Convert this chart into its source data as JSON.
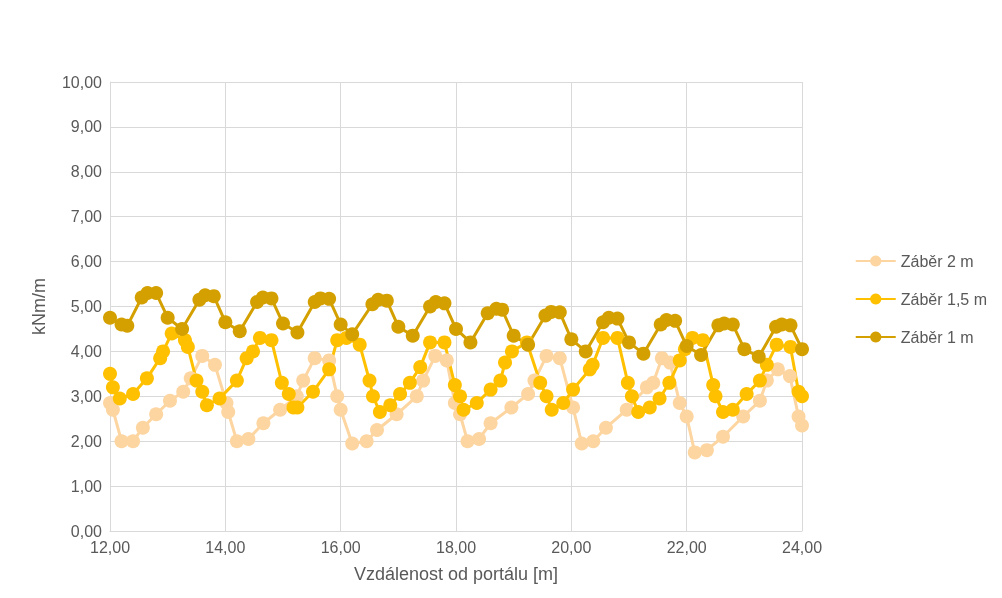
{
  "chart_data": {
    "type": "line",
    "xlabel": "Vzdálenost od portálu [m]",
    "ylabel": "kNm/m",
    "xlim": [
      12,
      24
    ],
    "ylim": [
      0,
      10
    ],
    "xticks": [
      {
        "value": 12,
        "label": "12,00"
      },
      {
        "value": 14,
        "label": "14,00"
      },
      {
        "value": 16,
        "label": "16,00"
      },
      {
        "value": 18,
        "label": "18,00"
      },
      {
        "value": 20,
        "label": "20,00"
      },
      {
        "value": 22,
        "label": "22,00"
      },
      {
        "value": 24,
        "label": "24,00"
      }
    ],
    "yticks": [
      {
        "value": 0,
        "label": "0,00"
      },
      {
        "value": 1,
        "label": "1,00"
      },
      {
        "value": 2,
        "label": "2,00"
      },
      {
        "value": 3,
        "label": "3,00"
      },
      {
        "value": 4,
        "label": "4,00"
      },
      {
        "value": 5,
        "label": "5,00"
      },
      {
        "value": 6,
        "label": "6,00"
      },
      {
        "value": 7,
        "label": "7,00"
      },
      {
        "value": 8,
        "label": "8,00"
      },
      {
        "value": 9,
        "label": "9,00"
      },
      {
        "value": 10,
        "label": "10,00"
      }
    ],
    "grid": true,
    "legend": "right",
    "marker": "circle",
    "series": [
      {
        "name": "Záběr 2 m",
        "color": "#fdd5a0",
        "x": [
          12.0,
          12.05,
          12.2,
          12.4,
          12.57,
          12.8,
          13.04,
          13.27,
          13.4,
          13.6,
          13.82,
          14.02,
          14.05,
          14.2,
          14.4,
          14.66,
          14.95,
          15.24,
          15.35,
          15.55,
          15.8,
          15.94,
          16.0,
          16.2,
          16.45,
          16.63,
          16.97,
          17.32,
          17.43,
          17.64,
          17.84,
          17.98,
          18.07,
          18.2,
          18.4,
          18.6,
          18.96,
          19.25,
          19.36,
          19.57,
          19.8,
          20.03,
          20.18,
          20.38,
          20.6,
          20.96,
          21.31,
          21.42,
          21.57,
          21.71,
          21.88,
          22.0,
          22.14,
          22.35,
          22.63,
          22.98,
          23.27,
          23.39,
          23.58,
          23.79,
          23.94,
          24.0
        ],
        "values": [
          2.85,
          2.7,
          2.0,
          2.0,
          2.3,
          2.6,
          2.9,
          3.1,
          3.4,
          3.9,
          3.7,
          2.85,
          2.65,
          2.0,
          2.05,
          2.4,
          2.7,
          3.0,
          3.35,
          3.85,
          3.8,
          3.0,
          2.7,
          1.95,
          2.0,
          2.25,
          2.6,
          3.0,
          3.35,
          3.9,
          3.8,
          2.85,
          2.6,
          2.0,
          2.05,
          2.4,
          2.75,
          3.05,
          3.35,
          3.9,
          3.85,
          2.75,
          1.95,
          2.0,
          2.3,
          2.7,
          3.2,
          3.3,
          3.85,
          3.75,
          2.85,
          2.55,
          1.75,
          1.8,
          2.1,
          2.55,
          2.9,
          3.35,
          3.6,
          3.45,
          2.55,
          2.35
        ]
      },
      {
        "name": "Záběr 1,5 m",
        "color": "#ffc000",
        "x": [
          12.0,
          12.05,
          12.17,
          12.4,
          12.64,
          12.87,
          12.92,
          13.07,
          13.3,
          13.35,
          13.5,
          13.6,
          13.68,
          13.9,
          14.2,
          14.37,
          14.48,
          14.6,
          14.8,
          14.98,
          15.1,
          15.18,
          15.25,
          15.52,
          15.8,
          15.94,
          16.1,
          16.33,
          16.5,
          16.56,
          16.68,
          16.86,
          17.03,
          17.2,
          17.38,
          17.55,
          17.8,
          17.98,
          18.07,
          18.13,
          18.36,
          18.6,
          18.77,
          18.85,
          18.97,
          19.23,
          19.46,
          19.57,
          19.66,
          19.86,
          20.03,
          20.32,
          20.37,
          20.55,
          20.8,
          20.98,
          21.05,
          21.16,
          21.36,
          21.53,
          21.7,
          21.88,
          21.97,
          22.1,
          22.28,
          22.46,
          22.5,
          22.63,
          22.8,
          23.04,
          23.27,
          23.39,
          23.56,
          23.8,
          23.94,
          24.0
        ],
        "values": [
          3.5,
          3.2,
          2.95,
          3.05,
          3.4,
          3.85,
          4.0,
          4.4,
          4.25,
          4.1,
          3.35,
          3.1,
          2.8,
          2.95,
          3.35,
          3.85,
          4.0,
          4.3,
          4.25,
          3.3,
          3.05,
          2.75,
          2.75,
          3.1,
          3.6,
          4.25,
          4.3,
          4.15,
          3.35,
          3.0,
          2.65,
          2.8,
          3.05,
          3.3,
          3.65,
          4.2,
          4.2,
          3.25,
          3.0,
          2.7,
          2.85,
          3.15,
          3.35,
          3.75,
          4.0,
          4.2,
          3.3,
          3.0,
          2.7,
          2.85,
          3.15,
          3.6,
          3.7,
          4.3,
          4.3,
          3.3,
          3.0,
          2.65,
          2.75,
          2.95,
          3.3,
          3.8,
          4.05,
          4.3,
          4.25,
          3.25,
          3.0,
          2.65,
          2.7,
          3.05,
          3.35,
          3.7,
          4.15,
          4.1,
          3.1,
          3.0
        ]
      },
      {
        "name": "Záběr 1 m",
        "color": "#d4a000",
        "x": [
          12.0,
          12.2,
          12.3,
          12.55,
          12.65,
          12.8,
          13.0,
          13.25,
          13.55,
          13.65,
          13.8,
          14.0,
          14.25,
          14.55,
          14.65,
          14.8,
          15.0,
          15.25,
          15.55,
          15.65,
          15.8,
          16.0,
          16.2,
          16.55,
          16.65,
          16.8,
          17.0,
          17.25,
          17.55,
          17.65,
          17.8,
          18.0,
          18.25,
          18.55,
          18.7,
          18.8,
          19.0,
          19.25,
          19.55,
          19.65,
          19.8,
          20.0,
          20.25,
          20.55,
          20.65,
          20.8,
          21.0,
          21.25,
          21.55,
          21.65,
          21.8,
          22.0,
          22.25,
          22.55,
          22.65,
          22.8,
          23.0,
          23.25,
          23.55,
          23.65,
          23.8,
          24.0
        ],
        "values": [
          4.75,
          4.6,
          4.57,
          5.2,
          5.3,
          5.3,
          4.75,
          4.5,
          5.15,
          5.25,
          5.23,
          4.65,
          4.45,
          5.1,
          5.2,
          5.18,
          4.62,
          4.42,
          5.1,
          5.18,
          5.17,
          4.6,
          4.38,
          5.05,
          5.15,
          5.13,
          4.55,
          4.35,
          5.0,
          5.1,
          5.07,
          4.5,
          4.2,
          4.85,
          4.95,
          4.93,
          4.35,
          4.15,
          4.8,
          4.88,
          4.87,
          4.27,
          4.0,
          4.65,
          4.75,
          4.73,
          4.2,
          3.95,
          4.6,
          4.7,
          4.68,
          4.12,
          3.92,
          4.58,
          4.62,
          4.6,
          4.05,
          3.88,
          4.55,
          4.6,
          4.58,
          4.05
        ]
      }
    ]
  }
}
